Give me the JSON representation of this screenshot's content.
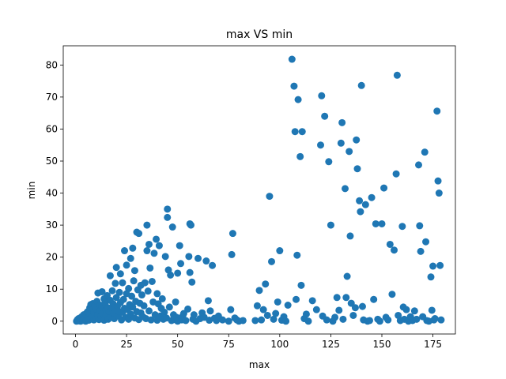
{
  "chart_data": {
    "type": "scatter",
    "title": "max VS min",
    "xlabel": "max",
    "ylabel": "min",
    "xlim": [
      -6,
      186
    ],
    "ylim": [
      -4,
      86
    ],
    "xticks": [
      0,
      25,
      50,
      75,
      100,
      125,
      150,
      175
    ],
    "yticks": [
      0,
      10,
      20,
      30,
      40,
      50,
      60,
      70,
      80
    ],
    "marker_color": "#1f77b4",
    "grid": false,
    "legend": "none",
    "series": [
      {
        "points": [
          [
            0.5,
            0.0
          ],
          [
            0.8,
            0.2
          ],
          [
            1.0,
            0.5
          ],
          [
            1.5,
            0.1
          ],
          [
            1.5,
            0.8
          ],
          [
            2.0,
            0.3
          ],
          [
            2.2,
            1.0
          ],
          [
            2.5,
            0.0
          ],
          [
            3.0,
            0.6
          ],
          [
            3.2,
            1.5
          ],
          [
            3.5,
            0.2
          ],
          [
            4.0,
            1.2
          ],
          [
            4.0,
            2.0
          ],
          [
            4.5,
            0.4
          ],
          [
            5.0,
            0.0
          ],
          [
            5.0,
            1.8
          ],
          [
            5.5,
            2.6
          ],
          [
            6.0,
            1.0
          ],
          [
            6.0,
            3.0
          ],
          [
            6.5,
            0.3
          ],
          [
            7.0,
            4.2
          ],
          [
            7.0,
            2.2
          ],
          [
            7.5,
            5.2
          ],
          [
            8.0,
            1.5
          ],
          [
            8.0,
            3.4
          ],
          [
            8.5,
            5.5
          ],
          [
            9.0,
            0.4
          ],
          [
            9.0,
            2.8
          ],
          [
            9.5,
            4.8
          ],
          [
            10.0,
            1.0
          ],
          [
            10.0,
            3.8
          ],
          [
            10.5,
            6.2
          ],
          [
            11.0,
            8.8
          ],
          [
            11.0,
            2.0
          ],
          [
            11.5,
            0.5
          ],
          [
            12.0,
            5.0
          ],
          [
            12.0,
            3.2
          ],
          [
            12.5,
            1.5
          ],
          [
            13.0,
            9.2
          ],
          [
            13.0,
            4.6
          ],
          [
            13.5,
            2.4
          ],
          [
            14.0,
            7.0
          ],
          [
            14.0,
            0.3
          ],
          [
            14.5,
            5.8
          ],
          [
            15.0,
            1.8
          ],
          [
            15.0,
            3.5
          ],
          [
            15.5,
            8.0
          ],
          [
            16.0,
            0.6
          ],
          [
            16.0,
            4.2
          ],
          [
            16.5,
            2.9
          ],
          [
            17.0,
            14.2
          ],
          [
            17.0,
            6.5
          ],
          [
            17.5,
            1.2
          ],
          [
            18.0,
            3.8
          ],
          [
            18.0,
            9.5
          ],
          [
            18.5,
            5.4
          ],
          [
            19.0,
            0.8
          ],
          [
            19.0,
            2.5
          ],
          [
            19.5,
            11.8
          ],
          [
            20.0,
            16.8
          ],
          [
            20.0,
            7.4
          ],
          [
            20.5,
            4.6
          ],
          [
            21.0,
            1.6
          ],
          [
            21.0,
            3.2
          ],
          [
            21.5,
            9.0
          ],
          [
            22.0,
            14.8
          ],
          [
            22.0,
            5.8
          ],
          [
            22.5,
            0.4
          ],
          [
            23.0,
            2.8
          ],
          [
            23.0,
            12.0
          ],
          [
            23.5,
            6.8
          ],
          [
            24.0,
            22.0
          ],
          [
            24.0,
            4.0
          ],
          [
            24.5,
            1.2
          ],
          [
            25.0,
            8.6
          ],
          [
            25.0,
            17.5
          ],
          [
            25.5,
            3.6
          ],
          [
            26.0,
            0.6
          ],
          [
            26.0,
            10.2
          ],
          [
            26.5,
            5.2
          ],
          [
            27.0,
            19.6
          ],
          [
            27.0,
            2.2
          ],
          [
            27.5,
            7.8
          ],
          [
            28.0,
            22.8
          ],
          [
            28.0,
            4.4
          ],
          [
            28.5,
            12.6
          ],
          [
            29.0,
            1.0
          ],
          [
            29.0,
            15.8
          ],
          [
            29.5,
            6.2
          ],
          [
            30.0,
            27.8
          ],
          [
            30.0,
            3.0
          ],
          [
            30.5,
            9.8
          ],
          [
            31.0,
            27.4
          ],
          [
            31.0,
            0.5
          ],
          [
            31.5,
            5.6
          ],
          [
            32.0,
            11.2
          ],
          [
            32.0,
            2.6
          ],
          [
            32.5,
            8.2
          ],
          [
            33.0,
            1.4
          ],
          [
            33.5,
            4.8
          ],
          [
            34.0,
            12.0
          ],
          [
            34.5,
            0.8
          ],
          [
            35.0,
            30.0
          ],
          [
            35.0,
            22.0
          ],
          [
            35.5,
            9.4
          ],
          [
            36.0,
            24.0
          ],
          [
            36.0,
            3.2
          ],
          [
            36.5,
            16.6
          ],
          [
            37.0,
            0.4
          ],
          [
            37.5,
            12.4
          ],
          [
            38.0,
            6.0
          ],
          [
            38.5,
            21.2
          ],
          [
            39.0,
            2.0
          ],
          [
            39.5,
            25.6
          ],
          [
            40.0,
            8.6
          ],
          [
            40.0,
            0.3
          ],
          [
            40.5,
            5.4
          ],
          [
            41.0,
            23.6
          ],
          [
            41.5,
            1.6
          ],
          [
            42.0,
            4.0
          ],
          [
            42.5,
            7.0
          ],
          [
            43.0,
            0.6
          ],
          [
            43.5,
            2.8
          ],
          [
            44.0,
            20.2
          ],
          [
            44.5,
            1.0
          ],
          [
            45.0,
            35.0
          ],
          [
            45.0,
            32.4
          ],
          [
            45.5,
            16.0
          ],
          [
            46.0,
            4.4
          ],
          [
            46.5,
            14.4
          ],
          [
            47.0,
            0.2
          ],
          [
            47.5,
            29.4
          ],
          [
            48.0,
            2.0
          ],
          [
            48.5,
            0.5
          ],
          [
            49.0,
            6.0
          ],
          [
            49.5,
            1.2
          ],
          [
            50.0,
            15.0
          ],
          [
            50.0,
            0.0
          ],
          [
            51.0,
            23.6
          ],
          [
            51.5,
            18.0
          ],
          [
            52.0,
            0.4
          ],
          [
            52.5,
            1.6
          ],
          [
            53.0,
            2.4
          ],
          [
            54.0,
            0.2
          ],
          [
            55.0,
            3.8
          ],
          [
            55.5,
            20.2
          ],
          [
            56.0,
            30.4
          ],
          [
            56.0,
            15.2
          ],
          [
            56.5,
            30.0
          ],
          [
            57.0,
            12.2
          ],
          [
            57.5,
            0.6
          ],
          [
            58.0,
            2.0
          ],
          [
            59.0,
            0.0
          ],
          [
            60.0,
            19.6
          ],
          [
            61.0,
            0.8
          ],
          [
            62.0,
            2.6
          ],
          [
            63.0,
            1.2
          ],
          [
            64.0,
            18.8
          ],
          [
            65.0,
            6.4
          ],
          [
            65.5,
            0.3
          ],
          [
            66.0,
            3.2
          ],
          [
            67.0,
            17.4
          ],
          [
            68.0,
            0.9
          ],
          [
            69.0,
            0.2
          ],
          [
            70.0,
            1.6
          ],
          [
            72.0,
            0.4
          ],
          [
            75.0,
            0.0
          ],
          [
            76.0,
            3.6
          ],
          [
            76.5,
            20.8
          ],
          [
            77.0,
            27.4
          ],
          [
            78.0,
            1.0
          ],
          [
            79.0,
            0.4
          ],
          [
            80.0,
            0.0
          ],
          [
            82.0,
            0.2
          ],
          [
            88.0,
            0.2
          ],
          [
            89.0,
            4.8
          ],
          [
            90.0,
            9.6
          ],
          [
            91.0,
            0.4
          ],
          [
            92.0,
            3.6
          ],
          [
            93.0,
            11.6
          ],
          [
            94.0,
            1.8
          ],
          [
            95.0,
            39.0
          ],
          [
            96.0,
            18.6
          ],
          [
            97.0,
            0.6
          ],
          [
            98.0,
            2.4
          ],
          [
            99.0,
            6.0
          ],
          [
            100.0,
            22.0
          ],
          [
            101.0,
            0.3
          ],
          [
            102.0,
            1.4
          ],
          [
            103.0,
            0.0
          ],
          [
            104.0,
            5.0
          ],
          [
            106.0,
            81.8
          ],
          [
            107.0,
            73.4
          ],
          [
            107.5,
            59.2
          ],
          [
            108.0,
            6.8
          ],
          [
            108.5,
            20.6
          ],
          [
            109.0,
            69.2
          ],
          [
            110.0,
            51.4
          ],
          [
            110.5,
            11.2
          ],
          [
            111.0,
            59.2
          ],
          [
            112.0,
            0.8
          ],
          [
            113.0,
            2.2
          ],
          [
            114.0,
            0.0
          ],
          [
            116.0,
            6.4
          ],
          [
            118.0,
            3.6
          ],
          [
            120.0,
            55.0
          ],
          [
            120.5,
            70.4
          ],
          [
            121.0,
            1.6
          ],
          [
            122.0,
            64.0
          ],
          [
            123.0,
            0.4
          ],
          [
            124.0,
            49.8
          ],
          [
            125.0,
            30.0
          ],
          [
            126.0,
            0.0
          ],
          [
            127.0,
            1.2
          ],
          [
            128.0,
            7.4
          ],
          [
            129.0,
            3.4
          ],
          [
            130.0,
            55.6
          ],
          [
            130.5,
            62.0
          ],
          [
            131.0,
            0.6
          ],
          [
            132.0,
            41.4
          ],
          [
            132.5,
            7.4
          ],
          [
            133.0,
            14.0
          ],
          [
            134.0,
            53.0
          ],
          [
            134.5,
            26.6
          ],
          [
            135.0,
            5.6
          ],
          [
            136.0,
            1.8
          ],
          [
            137.0,
            4.2
          ],
          [
            137.5,
            56.6
          ],
          [
            138.0,
            47.6
          ],
          [
            139.0,
            37.6
          ],
          [
            139.5,
            34.2
          ],
          [
            140.0,
            73.6
          ],
          [
            140.5,
            4.6
          ],
          [
            141.0,
            0.4
          ],
          [
            142.0,
            36.4
          ],
          [
            143.0,
            0.0
          ],
          [
            144.0,
            0.2
          ],
          [
            145.0,
            38.6
          ],
          [
            146.0,
            6.8
          ],
          [
            147.0,
            30.4
          ],
          [
            148.0,
            0.6
          ],
          [
            149.0,
            0.0
          ],
          [
            150.0,
            30.4
          ],
          [
            151.0,
            41.6
          ],
          [
            152.0,
            1.2
          ],
          [
            153.0,
            0.4
          ],
          [
            154.0,
            24.0
          ],
          [
            155.0,
            8.4
          ],
          [
            156.0,
            22.2
          ],
          [
            157.0,
            46.0
          ],
          [
            157.5,
            76.8
          ],
          [
            158.0,
            1.8
          ],
          [
            159.0,
            0.2
          ],
          [
            160.0,
            29.6
          ],
          [
            160.5,
            4.4
          ],
          [
            161.0,
            0.6
          ],
          [
            162.0,
            3.6
          ],
          [
            163.0,
            0.0
          ],
          [
            164.0,
            1.4
          ],
          [
            165.0,
            0.2
          ],
          [
            166.0,
            3.2
          ],
          [
            167.0,
            0.6
          ],
          [
            168.0,
            48.8
          ],
          [
            168.5,
            29.8
          ],
          [
            169.0,
            21.8
          ],
          [
            170.0,
            1.4
          ],
          [
            171.0,
            52.8
          ],
          [
            171.5,
            24.8
          ],
          [
            172.0,
            0.2
          ],
          [
            173.0,
            0.0
          ],
          [
            174.0,
            13.8
          ],
          [
            174.5,
            3.4
          ],
          [
            175.0,
            17.2
          ],
          [
            175.5,
            0.4
          ],
          [
            176.0,
            0.8
          ],
          [
            177.0,
            65.6
          ],
          [
            177.5,
            43.8
          ],
          [
            178.0,
            40.0
          ],
          [
            178.5,
            17.4
          ],
          [
            179.0,
            0.4
          ]
        ]
      }
    ]
  }
}
